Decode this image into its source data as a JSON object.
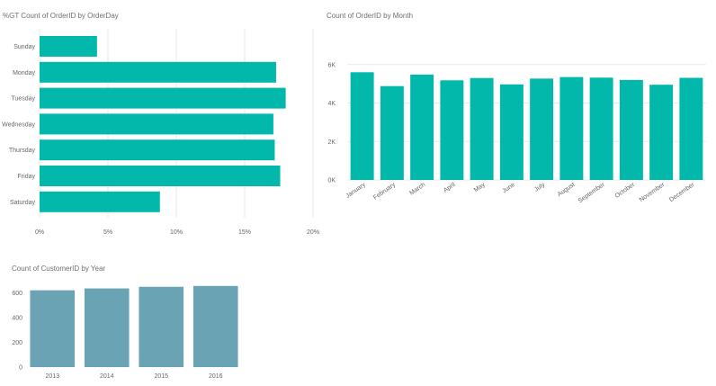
{
  "colors": {
    "teal": "#01b8aa",
    "slate": "#6aa3b4",
    "grid": "#e9e9e9",
    "text": "#666666"
  },
  "chart_data": [
    {
      "id": "gt_by_orderday",
      "type": "bar",
      "orientation": "horizontal",
      "title": "%GT Count of OrderID by OrderDay",
      "categories": [
        "Sunday",
        "Monday",
        "Tuesday",
        "Wednesday",
        "Thursday",
        "Friday",
        "Saturday"
      ],
      "values": [
        4.2,
        17.3,
        18.0,
        17.1,
        17.2,
        17.6,
        8.8
      ],
      "xlim": [
        0,
        20
      ],
      "xticks": [
        0,
        5,
        10,
        15,
        20
      ],
      "xtick_labels": [
        "0%",
        "5%",
        "10%",
        "15%",
        "20%"
      ],
      "grid": true,
      "color": "#01b8aa"
    },
    {
      "id": "orders_by_month",
      "type": "bar",
      "title": "Count of OrderID by Month",
      "categories": [
        "January",
        "February",
        "March",
        "April",
        "May",
        "June",
        "July",
        "August",
        "September",
        "October",
        "November",
        "December"
      ],
      "values": [
        5600,
        4880,
        5480,
        5180,
        5300,
        4970,
        5270,
        5350,
        5320,
        5200,
        4950,
        5310
      ],
      "ylim": [
        0,
        8000
      ],
      "yticks": [
        0,
        2000,
        4000,
        6000
      ],
      "ytick_labels": [
        "0K",
        "2K",
        "4K",
        "6K"
      ],
      "grid": true,
      "color": "#01b8aa"
    },
    {
      "id": "customers_by_year",
      "type": "bar",
      "title": "Count of CustomerID by Year",
      "categories": [
        "2013",
        "2014",
        "2015",
        "2016"
      ],
      "values": [
        620,
        635,
        648,
        655
      ],
      "ylim": [
        0,
        700
      ],
      "yticks": [
        0,
        200,
        400,
        600
      ],
      "ytick_labels": [
        "0",
        "200",
        "400",
        "600"
      ],
      "grid": false,
      "color": "#6aa3b4"
    }
  ]
}
